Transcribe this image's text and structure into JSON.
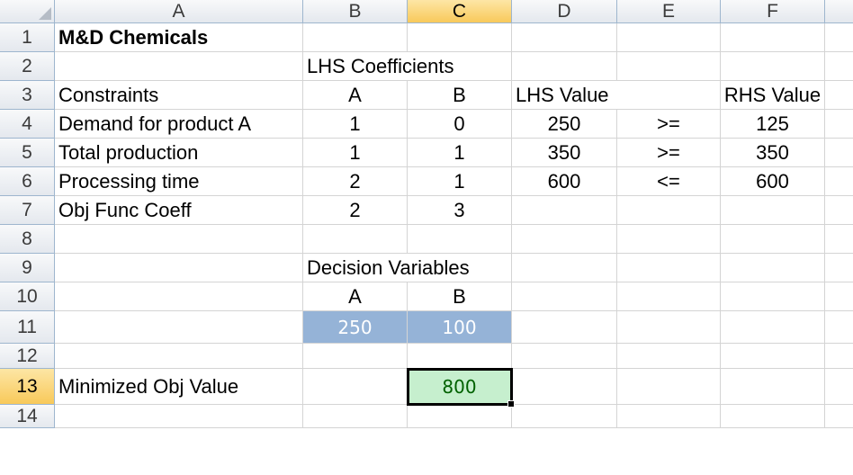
{
  "column_headers": [
    "A",
    "B",
    "C",
    "D",
    "E",
    "F"
  ],
  "active_column": "C",
  "row_headers": [
    "1",
    "2",
    "3",
    "4",
    "5",
    "6",
    "7",
    "8",
    "9",
    "10",
    "11",
    "12",
    "13",
    "14"
  ],
  "active_row": "13",
  "cells": {
    "A1": "M&D Chemicals",
    "B2": "LHS Coefficients",
    "A3": "Constraints",
    "B3": "A",
    "C3": "B",
    "D3": "LHS Value",
    "F3": "RHS Value",
    "A4": "Demand for product A",
    "B4": "1",
    "C4": "0",
    "D4": "250",
    "E4": ">=",
    "F4": "125",
    "A5": "Total production",
    "B5": "1",
    "C5": "1",
    "D5": "350",
    "E5": ">=",
    "F5": "350",
    "A6": "Processing time",
    "B6": "2",
    "C6": "1",
    "D6": "600",
    "E6": "<=",
    "F6": "600",
    "A7": "Obj Func Coeff",
    "B7": "2",
    "C7": "3",
    "B9": "Decision Variables",
    "B10": "A",
    "C10": "B",
    "B11": "250",
    "C11": "100",
    "A13": "Minimized Obj Value",
    "C13": "800"
  },
  "colors": {
    "decision_fill": "#95b3d7",
    "result_fill": "#c6efce",
    "result_text": "#006100",
    "active_header": "#f8c95a"
  }
}
